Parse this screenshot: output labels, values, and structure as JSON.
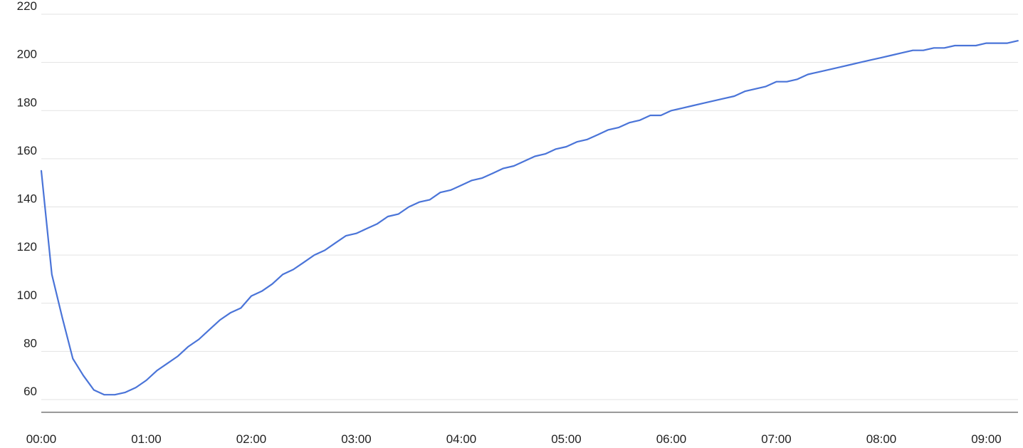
{
  "chart_data": {
    "type": "line",
    "title": "",
    "xlabel": "",
    "ylabel": "",
    "x_unit": "time (hh:mm)",
    "xlim": [
      "00:00",
      "09:20"
    ],
    "ylim": [
      55,
      220
    ],
    "y_ticks": [
      60,
      80,
      100,
      120,
      140,
      160,
      180,
      200,
      220
    ],
    "x_tick_labels": [
      "00:00",
      "01:00",
      "02:00",
      "03:00",
      "04:00",
      "05:00",
      "06:00",
      "07:00",
      "08:00",
      "09:00"
    ],
    "grid": "horizontal",
    "legend": "none",
    "colors": {
      "series": "#4a74d8",
      "grid": "#e3e3e3",
      "text": "#222222"
    },
    "series": [
      {
        "x": [
          "00:00",
          "00:06",
          "00:12",
          "00:18",
          "00:24",
          "00:30",
          "00:36",
          "00:42",
          "00:48",
          "00:54",
          "01:00",
          "01:06",
          "01:12",
          "01:18",
          "01:24",
          "01:30",
          "01:36",
          "01:42",
          "01:48",
          "01:54",
          "02:00",
          "02:06",
          "02:12",
          "02:18",
          "02:24",
          "02:30",
          "02:36",
          "02:42",
          "02:48",
          "02:54",
          "03:00",
          "03:06",
          "03:12",
          "03:18",
          "03:24",
          "03:30",
          "03:36",
          "03:42",
          "03:48",
          "03:54",
          "04:00",
          "04:06",
          "04:12",
          "04:18",
          "04:24",
          "04:30",
          "04:36",
          "04:42",
          "04:48",
          "04:54",
          "05:00",
          "05:06",
          "05:12",
          "05:18",
          "05:24",
          "05:30",
          "05:36",
          "05:42",
          "05:48",
          "05:54",
          "06:00",
          "06:06",
          "06:12",
          "06:18",
          "06:24",
          "06:30",
          "06:36",
          "06:42",
          "06:48",
          "06:54",
          "07:00",
          "07:06",
          "07:12",
          "07:18",
          "07:24",
          "07:30",
          "07:36",
          "07:42",
          "07:48",
          "07:54",
          "08:00",
          "08:06",
          "08:12",
          "08:18",
          "08:24",
          "08:30",
          "08:36",
          "08:42",
          "08:48",
          "08:54",
          "09:00",
          "09:06",
          "09:12",
          "09:18"
        ],
        "values": [
          155,
          112,
          94,
          77,
          70,
          64,
          62,
          62,
          63,
          65,
          68,
          72,
          75,
          78,
          82,
          85,
          89,
          93,
          96,
          98,
          103,
          105,
          108,
          112,
          114,
          117,
          120,
          122,
          125,
          128,
          129,
          131,
          133,
          136,
          137,
          140,
          142,
          143,
          146,
          147,
          149,
          151,
          152,
          154,
          156,
          157,
          159,
          161,
          162,
          164,
          165,
          167,
          168,
          170,
          172,
          173,
          175,
          176,
          178,
          178,
          180,
          181,
          182,
          183,
          184,
          185,
          186,
          188,
          189,
          190,
          192,
          192,
          193,
          195,
          196,
          197,
          198,
          199,
          200,
          201,
          202,
          203,
          204,
          205,
          205,
          206,
          206,
          207,
          207,
          207,
          208,
          208,
          208,
          209
        ]
      }
    ]
  }
}
